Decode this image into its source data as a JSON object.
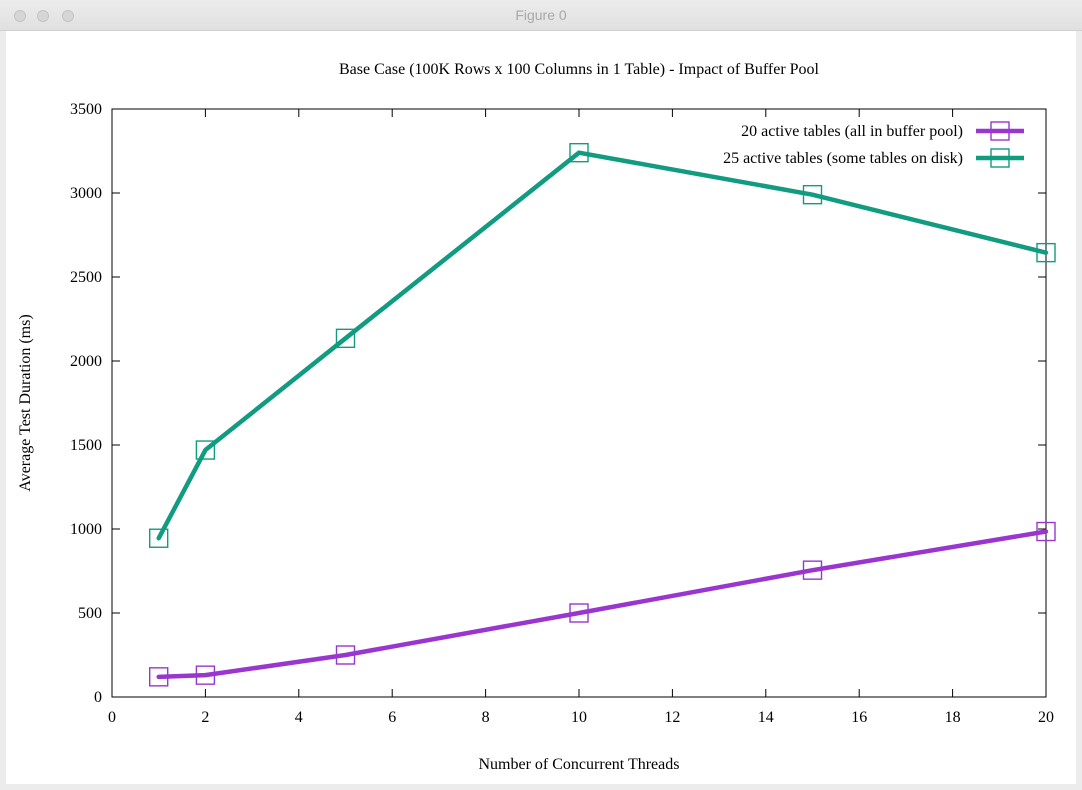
{
  "window": {
    "title": "Figure 0"
  },
  "chart_data": {
    "type": "line",
    "title": "Base Case (100K Rows x 100 Columns in 1 Table) - Impact of Buffer Pool",
    "xlabel": "Number of Concurrent Threads",
    "ylabel": "Average Test Duration (ms)",
    "xlim": [
      0,
      20
    ],
    "ylim": [
      0,
      3500
    ],
    "xticks": [
      0,
      2,
      4,
      6,
      8,
      10,
      12,
      14,
      16,
      18,
      20
    ],
    "yticks": [
      0,
      500,
      1000,
      1500,
      2000,
      2500,
      3000,
      3500
    ],
    "grid": false,
    "legend_position": "top-right",
    "series": [
      {
        "name": "20 active tables (all in buffer pool)",
        "color": "#9a36d0",
        "marker": "square",
        "x": [
          1,
          2,
          5,
          10,
          15,
          20
        ],
        "y": [
          120,
          130,
          250,
          500,
          755,
          985
        ]
      },
      {
        "name": "25 active tables (some tables on disk)",
        "color": "#119b80",
        "marker": "square",
        "x": [
          1,
          2,
          5,
          10,
          15,
          20
        ],
        "y": [
          945,
          1470,
          2135,
          3240,
          2990,
          2645
        ]
      }
    ]
  }
}
